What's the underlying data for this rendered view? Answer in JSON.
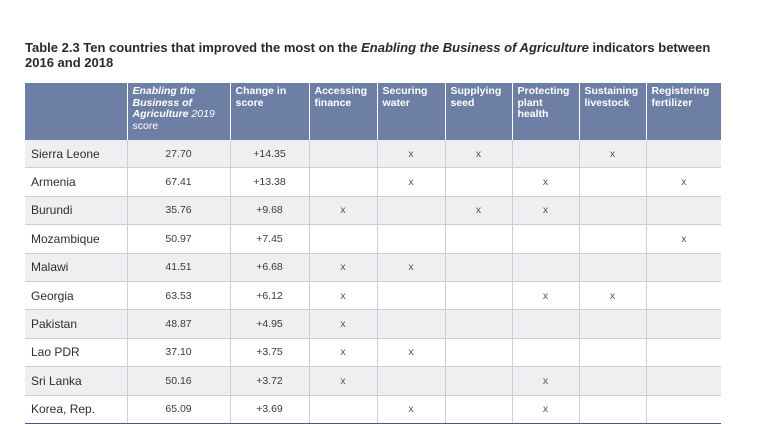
{
  "caption": {
    "prefix": "Table 2.3 Ten countries that improved the most on the ",
    "emph": "Enabling the Business of Agriculture",
    "suffix": " indicators between 2016 and 2018"
  },
  "headers": {
    "score_it": "Enabling the Business of Agriculture",
    "score_year": " 2019",
    "score_tail": "score",
    "change": "Change in score",
    "finance": "Accessing finance",
    "water": "Securing water",
    "seed": "Supplying seed",
    "plant": "Protecting plant health",
    "livestock": "Sustaining livestock",
    "fertilizer": "Registering fertilizer"
  },
  "mark_symbol": "x",
  "rows": [
    {
      "country": "Sierra Leone",
      "score": "27.70",
      "change": "+14.35",
      "finance": "",
      "water": "x",
      "seed": "x",
      "plant": "",
      "livestock": "x",
      "fertilizer": ""
    },
    {
      "country": "Armenia",
      "score": "67.41",
      "change": "+13.38",
      "finance": "",
      "water": "x",
      "seed": "",
      "plant": "x",
      "livestock": "",
      "fertilizer": "x"
    },
    {
      "country": "Burundi",
      "score": "35.76",
      "change": "+9.68",
      "finance": "x",
      "water": "",
      "seed": "x",
      "plant": "x",
      "livestock": "",
      "fertilizer": ""
    },
    {
      "country": "Mozambique",
      "score": "50.97",
      "change": "+7.45",
      "finance": "",
      "water": "",
      "seed": "",
      "plant": "",
      "livestock": "",
      "fertilizer": "x"
    },
    {
      "country": "Malawi",
      "score": "41.51",
      "change": "+6.68",
      "finance": "x",
      "water": "x",
      "seed": "",
      "plant": "",
      "livestock": "",
      "fertilizer": ""
    },
    {
      "country": "Georgia",
      "score": "63.53",
      "change": "+6.12",
      "finance": "x",
      "water": "",
      "seed": "",
      "plant": "x",
      "livestock": "x",
      "fertilizer": ""
    },
    {
      "country": "Pakistan",
      "score": "48.87",
      "change": "+4.95",
      "finance": "x",
      "water": "",
      "seed": "",
      "plant": "",
      "livestock": "",
      "fertilizer": ""
    },
    {
      "country": "Lao PDR",
      "score": "37.10",
      "change": "+3.75",
      "finance": "x",
      "water": "x",
      "seed": "",
      "plant": "",
      "livestock": "",
      "fertilizer": ""
    },
    {
      "country": "Sri Lanka",
      "score": "50.16",
      "change": "+3.72",
      "finance": "x",
      "water": "",
      "seed": "",
      "plant": "x",
      "livestock": "",
      "fertilizer": ""
    },
    {
      "country": "Korea, Rep.",
      "score": "65.09",
      "change": "+3.69",
      "finance": "",
      "water": "x",
      "seed": "",
      "plant": "x",
      "livestock": "",
      "fertilizer": ""
    }
  ],
  "colors": {
    "header_bg": "#6e7fa6",
    "row_shade": "#eeeff1",
    "bottom_rule": "#4b587a"
  }
}
